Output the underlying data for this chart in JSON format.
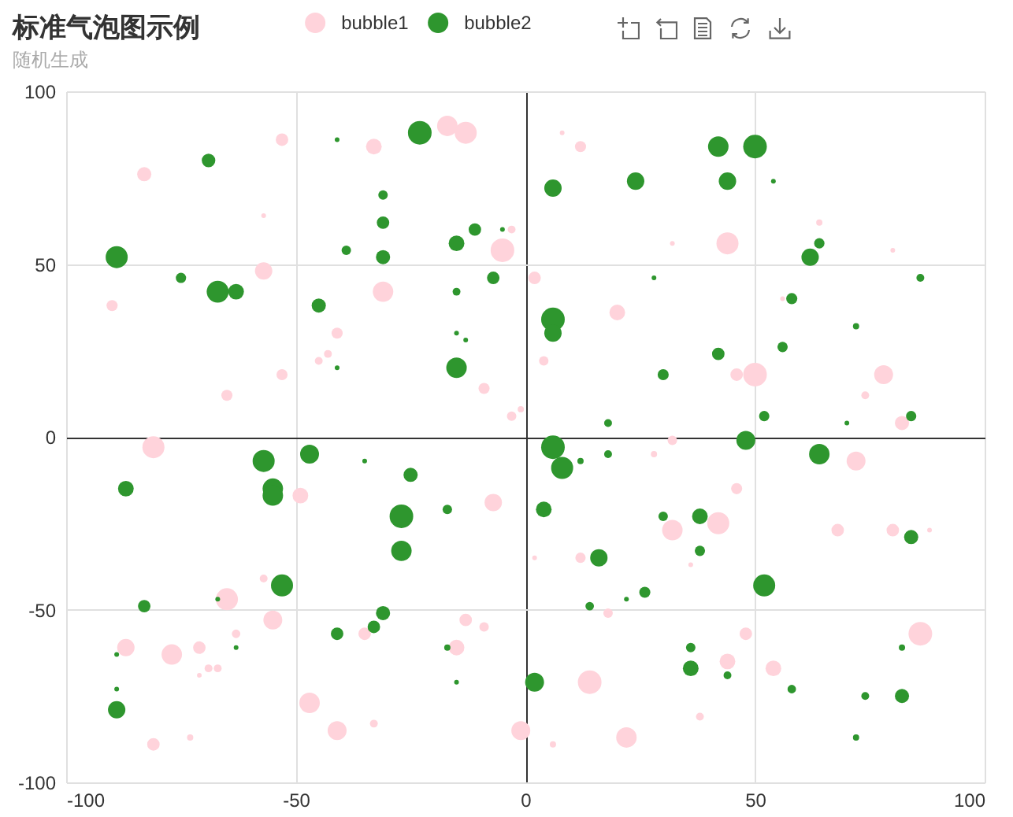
{
  "chart_data": {
    "type": "bubble",
    "title": "标准气泡图示例",
    "subtitle": "随机生成",
    "marker": "circle",
    "grid": true,
    "legend": "top",
    "xlim": [
      -100,
      100
    ],
    "xticks": [
      -100,
      -50,
      0,
      50,
      100
    ],
    "ylim": [
      -100,
      100
    ],
    "yticks": [
      -100,
      -50,
      0,
      50,
      100
    ],
    "series": [
      {
        "name": "bubble1",
        "color": "#ffd3db",
        "x": [
          -53,
          -33,
          -83,
          -57,
          -57,
          -90,
          -31,
          -41,
          -43,
          -45,
          -53,
          -65,
          -81,
          -17,
          -13,
          8,
          12,
          32,
          -3,
          -5,
          2,
          20,
          4,
          -9,
          -3,
          -1,
          32,
          28,
          64,
          44,
          80,
          56,
          46,
          50,
          78,
          74,
          82,
          72,
          -7,
          -13,
          -9,
          -35,
          -15,
          -33,
          46,
          32,
          42,
          68,
          80,
          88,
          2,
          12,
          36,
          18,
          48,
          86,
          44,
          54,
          14,
          38,
          -1,
          22,
          6,
          -49,
          -57,
          -65,
          -55,
          -63,
          -87,
          -77,
          -71,
          -69,
          -67,
          -71,
          -47,
          -41,
          -81,
          -73
        ],
        "values": [
          86,
          84,
          76,
          64,
          48,
          38,
          42,
          30,
          24,
          22,
          18,
          12,
          -3,
          90,
          88,
          88,
          84,
          56,
          60,
          54,
          46,
          36,
          22,
          14,
          6,
          8,
          -1,
          -5,
          62,
          56,
          54,
          40,
          18,
          18,
          18,
          12,
          4,
          -7,
          -19,
          -53,
          -55,
          -57,
          -61,
          -83,
          -15,
          -27,
          -25,
          -27,
          -27,
          -27,
          -35,
          -35,
          -37,
          -51,
          -57,
          -57,
          -65,
          -67,
          -71,
          -81,
          -85,
          -87,
          -89,
          -17,
          -41,
          -47,
          -53,
          -57,
          -61,
          -63,
          -61,
          -67,
          -67,
          -69,
          -77,
          -85,
          -89,
          -87
        ],
        "sizes": [
          0.28,
          0.44,
          0.36,
          0.04,
          0.54,
          0.22,
          0.75,
          0.22,
          0.11,
          0.11,
          0.22,
          0.22,
          0.87,
          0.75,
          0.87,
          0.04,
          0.22,
          0.04,
          0.11,
          1,
          0.28,
          0.44,
          0.16,
          0.22,
          0.16,
          0.07,
          0.16,
          0.07,
          0.07,
          0.87,
          0.04,
          0.04,
          0.28,
          1,
          0.64,
          0.11,
          0.36,
          0.64,
          0.54,
          0.28,
          0.16,
          0.28,
          0.44,
          0.11,
          0.22,
          0.75,
          0.87,
          0.28,
          0.28,
          0.04,
          0.04,
          0.19,
          0.04,
          0.16,
          0.28,
          1,
          0.44,
          0.44,
          1,
          0.11,
          0.64,
          0.75,
          0.07,
          0.44,
          0.11,
          0.87,
          0.64,
          0.13,
          0.54,
          0.75,
          0.28,
          0.11,
          0.11,
          0.04,
          0.75,
          0.64,
          0.28,
          0.07
        ]
      },
      {
        "name": "bubble2",
        "color": "#2e962e",
        "x": [
          -41,
          -69,
          -31,
          -31,
          -39,
          -31,
          -89,
          -75,
          -67,
          -63,
          -45,
          -41,
          -23,
          6,
          24,
          -15,
          -11,
          -5,
          -7,
          -15,
          28,
          6,
          6,
          -15,
          -13,
          -15,
          30,
          18,
          42,
          50,
          44,
          54,
          64,
          62,
          86,
          58,
          72,
          42,
          56,
          52,
          70,
          84,
          48,
          -25,
          -27,
          -27,
          -17,
          -31,
          -33,
          -17,
          -15,
          6,
          8,
          12,
          18,
          64,
          4,
          30,
          38,
          84,
          16,
          38,
          52,
          26,
          22,
          14,
          82,
          36,
          36,
          44,
          2,
          58,
          74,
          82,
          72,
          -57,
          -47,
          -35,
          -87,
          -55,
          -55,
          -53,
          -67,
          -83,
          -41,
          -63,
          -89,
          -89,
          -89
        ],
        "values": [
          86,
          80,
          70,
          62,
          54,
          52,
          52,
          46,
          42,
          42,
          38,
          20,
          88,
          72,
          74,
          56,
          60,
          60,
          46,
          42,
          46,
          34,
          30,
          30,
          28,
          20,
          18,
          4,
          84,
          84,
          74,
          74,
          56,
          52,
          46,
          40,
          32,
          24,
          26,
          6,
          4,
          6,
          -1,
          -11,
          -23,
          -33,
          -21,
          -51,
          -55,
          -61,
          -71,
          -3,
          -9,
          -7,
          -5,
          -5,
          -21,
          -23,
          -23,
          -29,
          -35,
          -33,
          -43,
          -45,
          -47,
          -49,
          -61,
          -61,
          -67,
          -69,
          -71,
          -73,
          -75,
          -75,
          -87,
          -7,
          -5,
          -7,
          -15,
          -15,
          -17,
          -43,
          -47,
          -49,
          -57,
          -61,
          -63,
          -73,
          -79
        ],
        "sizes": [
          0.04,
          0.33,
          0.16,
          0.28,
          0.16,
          0.36,
          0.87,
          0.19,
          0.87,
          0.44,
          0.36,
          0.04,
          1,
          0.54,
          0.54,
          0.44,
          0.28,
          0.04,
          0.28,
          0.11,
          0.04,
          1,
          0.54,
          0.04,
          0.04,
          0.75,
          0.22,
          0.11,
          0.75,
          1,
          0.54,
          0.04,
          0.19,
          0.54,
          0.11,
          0.22,
          0.07,
          0.28,
          0.19,
          0.19,
          0.04,
          0.19,
          0.64,
          0.36,
          1,
          0.75,
          0.16,
          0.36,
          0.28,
          0.07,
          0.04,
          1,
          0.87,
          0.07,
          0.11,
          0.75,
          0.44,
          0.16,
          0.44,
          0.36,
          0.54,
          0.19,
          0.87,
          0.22,
          0.04,
          0.13,
          0.07,
          0.16,
          0.44,
          0.11,
          0.64,
          0.13,
          0.11,
          0.36,
          0.07,
          0.87,
          0.64,
          0.04,
          0.44,
          0.75,
          0.75,
          0.87,
          0.04,
          0.28,
          0.28,
          0.04,
          0.04,
          0.04,
          0.54
        ]
      }
    ]
  }
}
